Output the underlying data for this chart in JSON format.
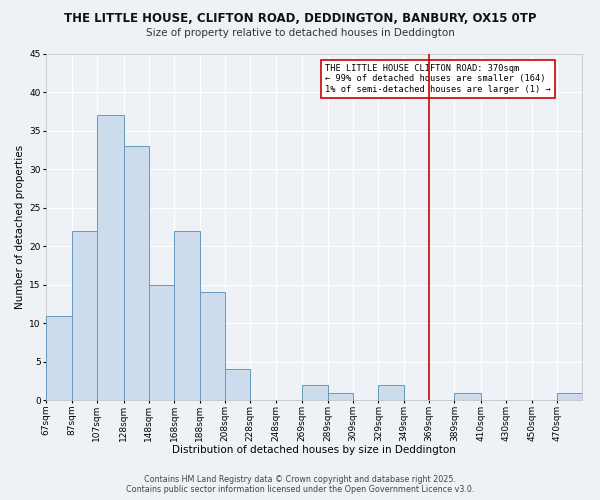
{
  "title": "THE LITTLE HOUSE, CLIFTON ROAD, DEDDINGTON, BANBURY, OX15 0TP",
  "subtitle": "Size of property relative to detached houses in Deddington",
  "xlabel": "Distribution of detached houses by size in Deddington",
  "ylabel": "Number of detached properties",
  "bin_labels": [
    "67sqm",
    "87sqm",
    "107sqm",
    "128sqm",
    "148sqm",
    "168sqm",
    "188sqm",
    "208sqm",
    "228sqm",
    "248sqm",
    "269sqm",
    "289sqm",
    "309sqm",
    "329sqm",
    "349sqm",
    "369sqm",
    "389sqm",
    "410sqm",
    "430sqm",
    "450sqm",
    "470sqm"
  ],
  "bin_edges": [
    67,
    87,
    107,
    128,
    148,
    168,
    188,
    208,
    228,
    248,
    269,
    289,
    309,
    329,
    349,
    369,
    389,
    410,
    430,
    450,
    470,
    490
  ],
  "bar_heights": [
    11,
    22,
    37,
    33,
    15,
    22,
    14,
    4,
    0,
    0,
    2,
    1,
    0,
    2,
    0,
    0,
    1,
    0,
    0,
    0,
    1
  ],
  "bar_color": "#ccdcec",
  "bar_edge_color": "#6699bb",
  "vline_x": 369,
  "vline_color": "#cc0000",
  "ylim": [
    0,
    45
  ],
  "yticks": [
    0,
    5,
    10,
    15,
    20,
    25,
    30,
    35,
    40,
    45
  ],
  "annotation_text": "THE LITTLE HOUSE CLIFTON ROAD: 370sqm\n← 99% of detached houses are smaller (164)\n1% of semi-detached houses are larger (1) →",
  "annotation_box_color": "#ffffff",
  "annotation_box_edge": "#cc0000",
  "footer1": "Contains HM Land Registry data © Crown copyright and database right 2025.",
  "footer2": "Contains public sector information licensed under the Open Government Licence v3.0.",
  "bg_color": "#eef2f7",
  "grid_color": "#ffffff",
  "title_fontsize": 8.5,
  "subtitle_fontsize": 7.5,
  "axis_label_fontsize": 7.5,
  "tick_fontsize": 6.5,
  "annotation_fontsize": 6.2,
  "footer_fontsize": 5.8
}
